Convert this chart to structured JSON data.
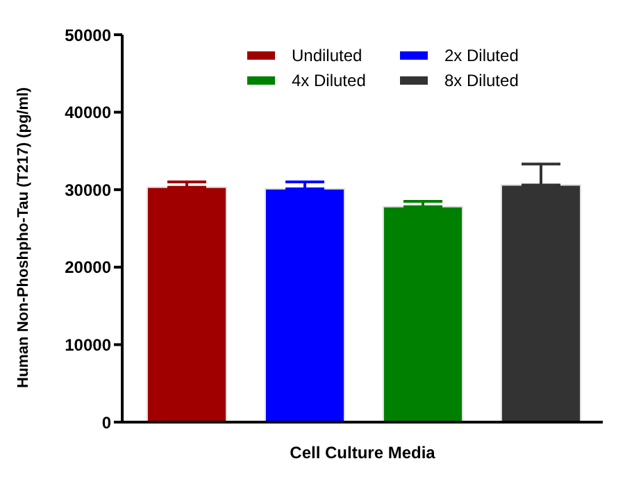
{
  "chart_data": {
    "type": "bar",
    "xlabel": "Cell Culture Media",
    "ylabel": "Human Non-Phoshpho-Tau (T217) (pg/ml)",
    "categories": [
      null
    ],
    "series": [
      {
        "name": "Undiluted",
        "color": "#a00000",
        "values": [
          30300
        ],
        "errors": [
          [
            30300,
            31000
          ]
        ]
      },
      {
        "name": "2x Diluted",
        "color": "#0000ff",
        "values": [
          30100
        ],
        "errors": [
          [
            30100,
            31000
          ]
        ]
      },
      {
        "name": "4x Diluted",
        "color": "#008000",
        "values": [
          27800
        ],
        "errors": [
          [
            27800,
            28500
          ]
        ]
      },
      {
        "name": "8x Diluted",
        "color": "#333333",
        "values": [
          30600
        ],
        "errors": [
          [
            30600,
            33300
          ]
        ]
      }
    ],
    "ylim": [
      0,
      50000
    ],
    "yticks": [
      0,
      10000,
      20000,
      30000,
      40000,
      50000
    ],
    "grid": false,
    "legend": "top"
  }
}
